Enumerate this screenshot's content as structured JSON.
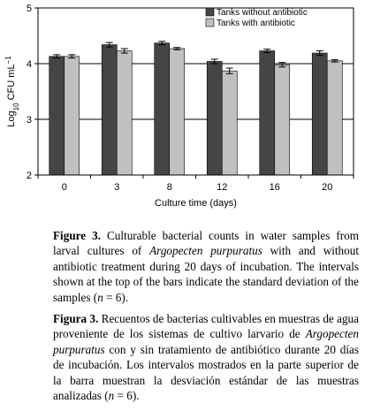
{
  "chart_data": {
    "type": "bar",
    "categories": [
      "0",
      "3",
      "8",
      "12",
      "16",
      "20"
    ],
    "series": [
      {
        "name": "Tanks without antibiotic",
        "color": "#454545",
        "values": [
          4.13,
          4.34,
          4.37,
          4.04,
          4.23,
          4.19
        ],
        "errors": [
          0.03,
          0.04,
          0.03,
          0.04,
          0.03,
          0.04
        ]
      },
      {
        "name": "Tanks with antibiotic",
        "color": "#c0c0c0",
        "values": [
          4.13,
          4.23,
          4.27,
          3.87,
          3.98,
          4.05
        ],
        "errors": [
          0.03,
          0.04,
          0.02,
          0.05,
          0.04,
          0.02
        ]
      }
    ],
    "xlabel": "Culture time (days)",
    "ylabel": {
      "base": "Log",
      "sub": "10",
      "mid": " CFU mL",
      "sup": "−1"
    },
    "ylim": [
      2,
      5
    ],
    "yticks": [
      "2",
      "3",
      "4",
      "5"
    ],
    "grid": true,
    "legend_position": "top-right"
  },
  "caption_en": {
    "label": "Figure 3.",
    "p1": " Culturable bacterial counts in water samples from larval cultures of ",
    "species": "Argopecten purpuratus",
    "p2": " with and without antibiotic treatment during 20 days of incubation. The intervals shown at the top of the bars indicate the standard deviation of the samples (",
    "n": "n",
    "p3": " = 6)."
  },
  "caption_es": {
    "label": "Figura 3.",
    "p1": " Recuentos de bacterias cultivables en muestras de agua proveniente de los sistemas de cultivo larvario de ",
    "species": "Argopecten purpuratus",
    "p2": " con y sin tratamiento de antibiótico durante 20 días de incubación. Los intervalos mostrados en la parte superior de la barra muestran la desviación estándar de las muestras analizadas (",
    "n": "n",
    "p3": " = 6)."
  }
}
